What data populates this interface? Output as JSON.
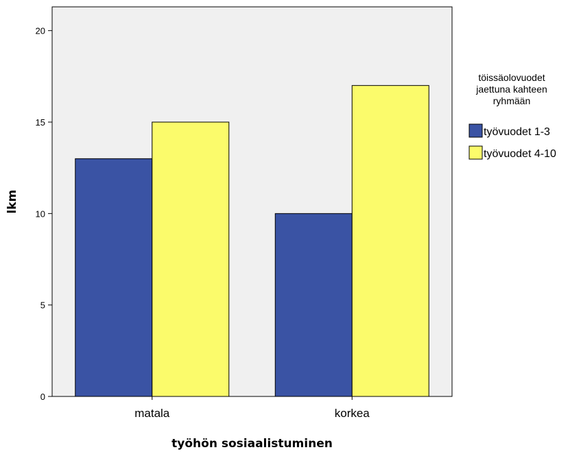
{
  "chart_data": {
    "type": "bar",
    "title": "",
    "xlabel": "työhön sosiaalistuminen",
    "ylabel": "lkm",
    "categories": [
      "matala",
      "korkea"
    ],
    "series": [
      {
        "name": "työvuodet 1-3",
        "values": [
          13,
          10
        ],
        "color": "#3a53a4"
      },
      {
        "name": "työvuodet 4-10",
        "values": [
          15,
          17
        ],
        "color": "#fbfb6b"
      }
    ],
    "ylim": [
      0,
      21.3
    ],
    "yticks": [
      0,
      5,
      10,
      15,
      20
    ],
    "grid": false,
    "legend": {
      "title": [
        "töissäolovuodet",
        "jaettuna kahteen",
        "ryhmään"
      ],
      "placement": "right"
    },
    "colors": {
      "plot_background": "#f0f0f0",
      "bar_outline": "#000000",
      "frame": "#000000"
    }
  }
}
